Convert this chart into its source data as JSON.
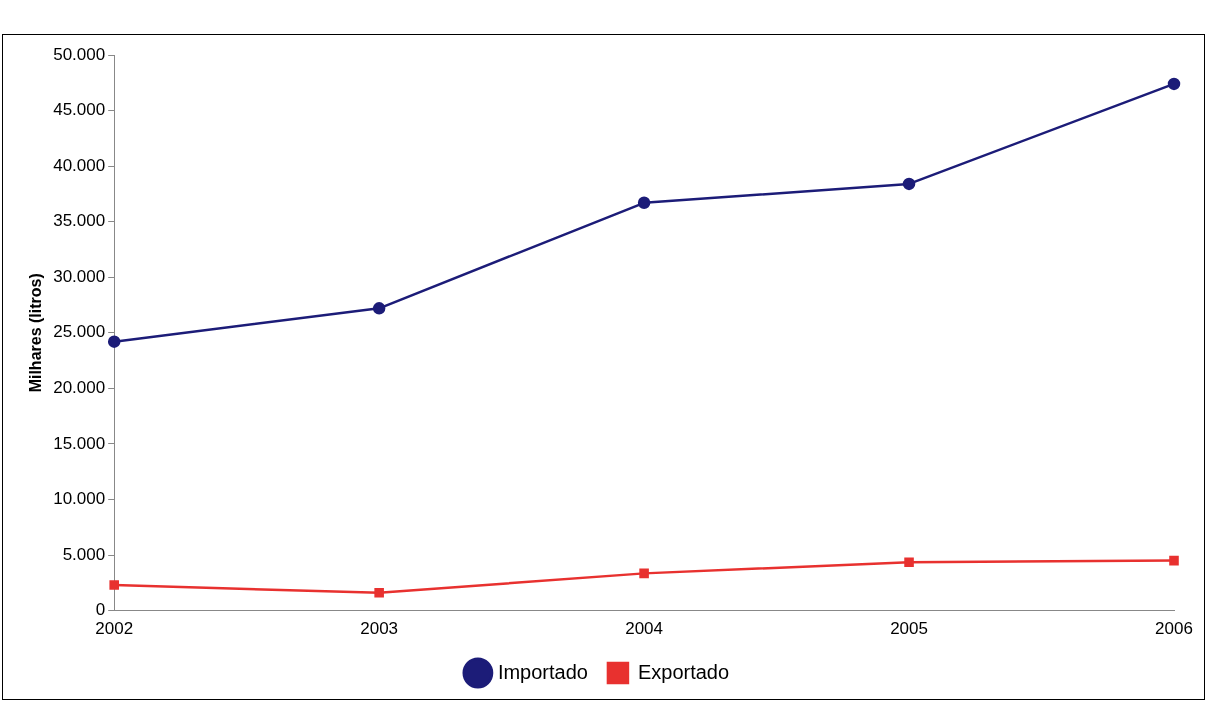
{
  "chart_data": {
    "type": "line",
    "ylabel": "Milhares (litros)",
    "categories": [
      "2002",
      "2003",
      "2004",
      "2005",
      "2006"
    ],
    "series": [
      {
        "name": "Importado",
        "color": "#1c1c78",
        "values": [
          24200,
          27200,
          36700,
          38400,
          47400
        ],
        "marker": "circle"
      },
      {
        "name": "Exportado",
        "color": "#e8312f",
        "values": [
          2300,
          1600,
          3350,
          4350,
          4500
        ],
        "marker": "square"
      }
    ],
    "ylim": [
      0,
      50000
    ],
    "yticks": [
      0,
      {
        "value": 5000,
        "label": "5.000"
      },
      {
        "value": 10000,
        "label": "10.000"
      },
      {
        "value": 15000,
        "label": "15.000"
      },
      {
        "value": 20000,
        "label": "20.000"
      },
      {
        "value": 25000,
        "label": "25.000"
      },
      {
        "value": 30000,
        "label": "30.000"
      },
      {
        "value": 35000,
        "label": "35.000"
      },
      {
        "value": 40000,
        "label": "40.000"
      },
      {
        "value": 45000,
        "label": "45.000"
      },
      {
        "value": 50000,
        "label": "50.000"
      }
    ],
    "grid": false,
    "legend": "bottom",
    "line_style": "solid"
  }
}
